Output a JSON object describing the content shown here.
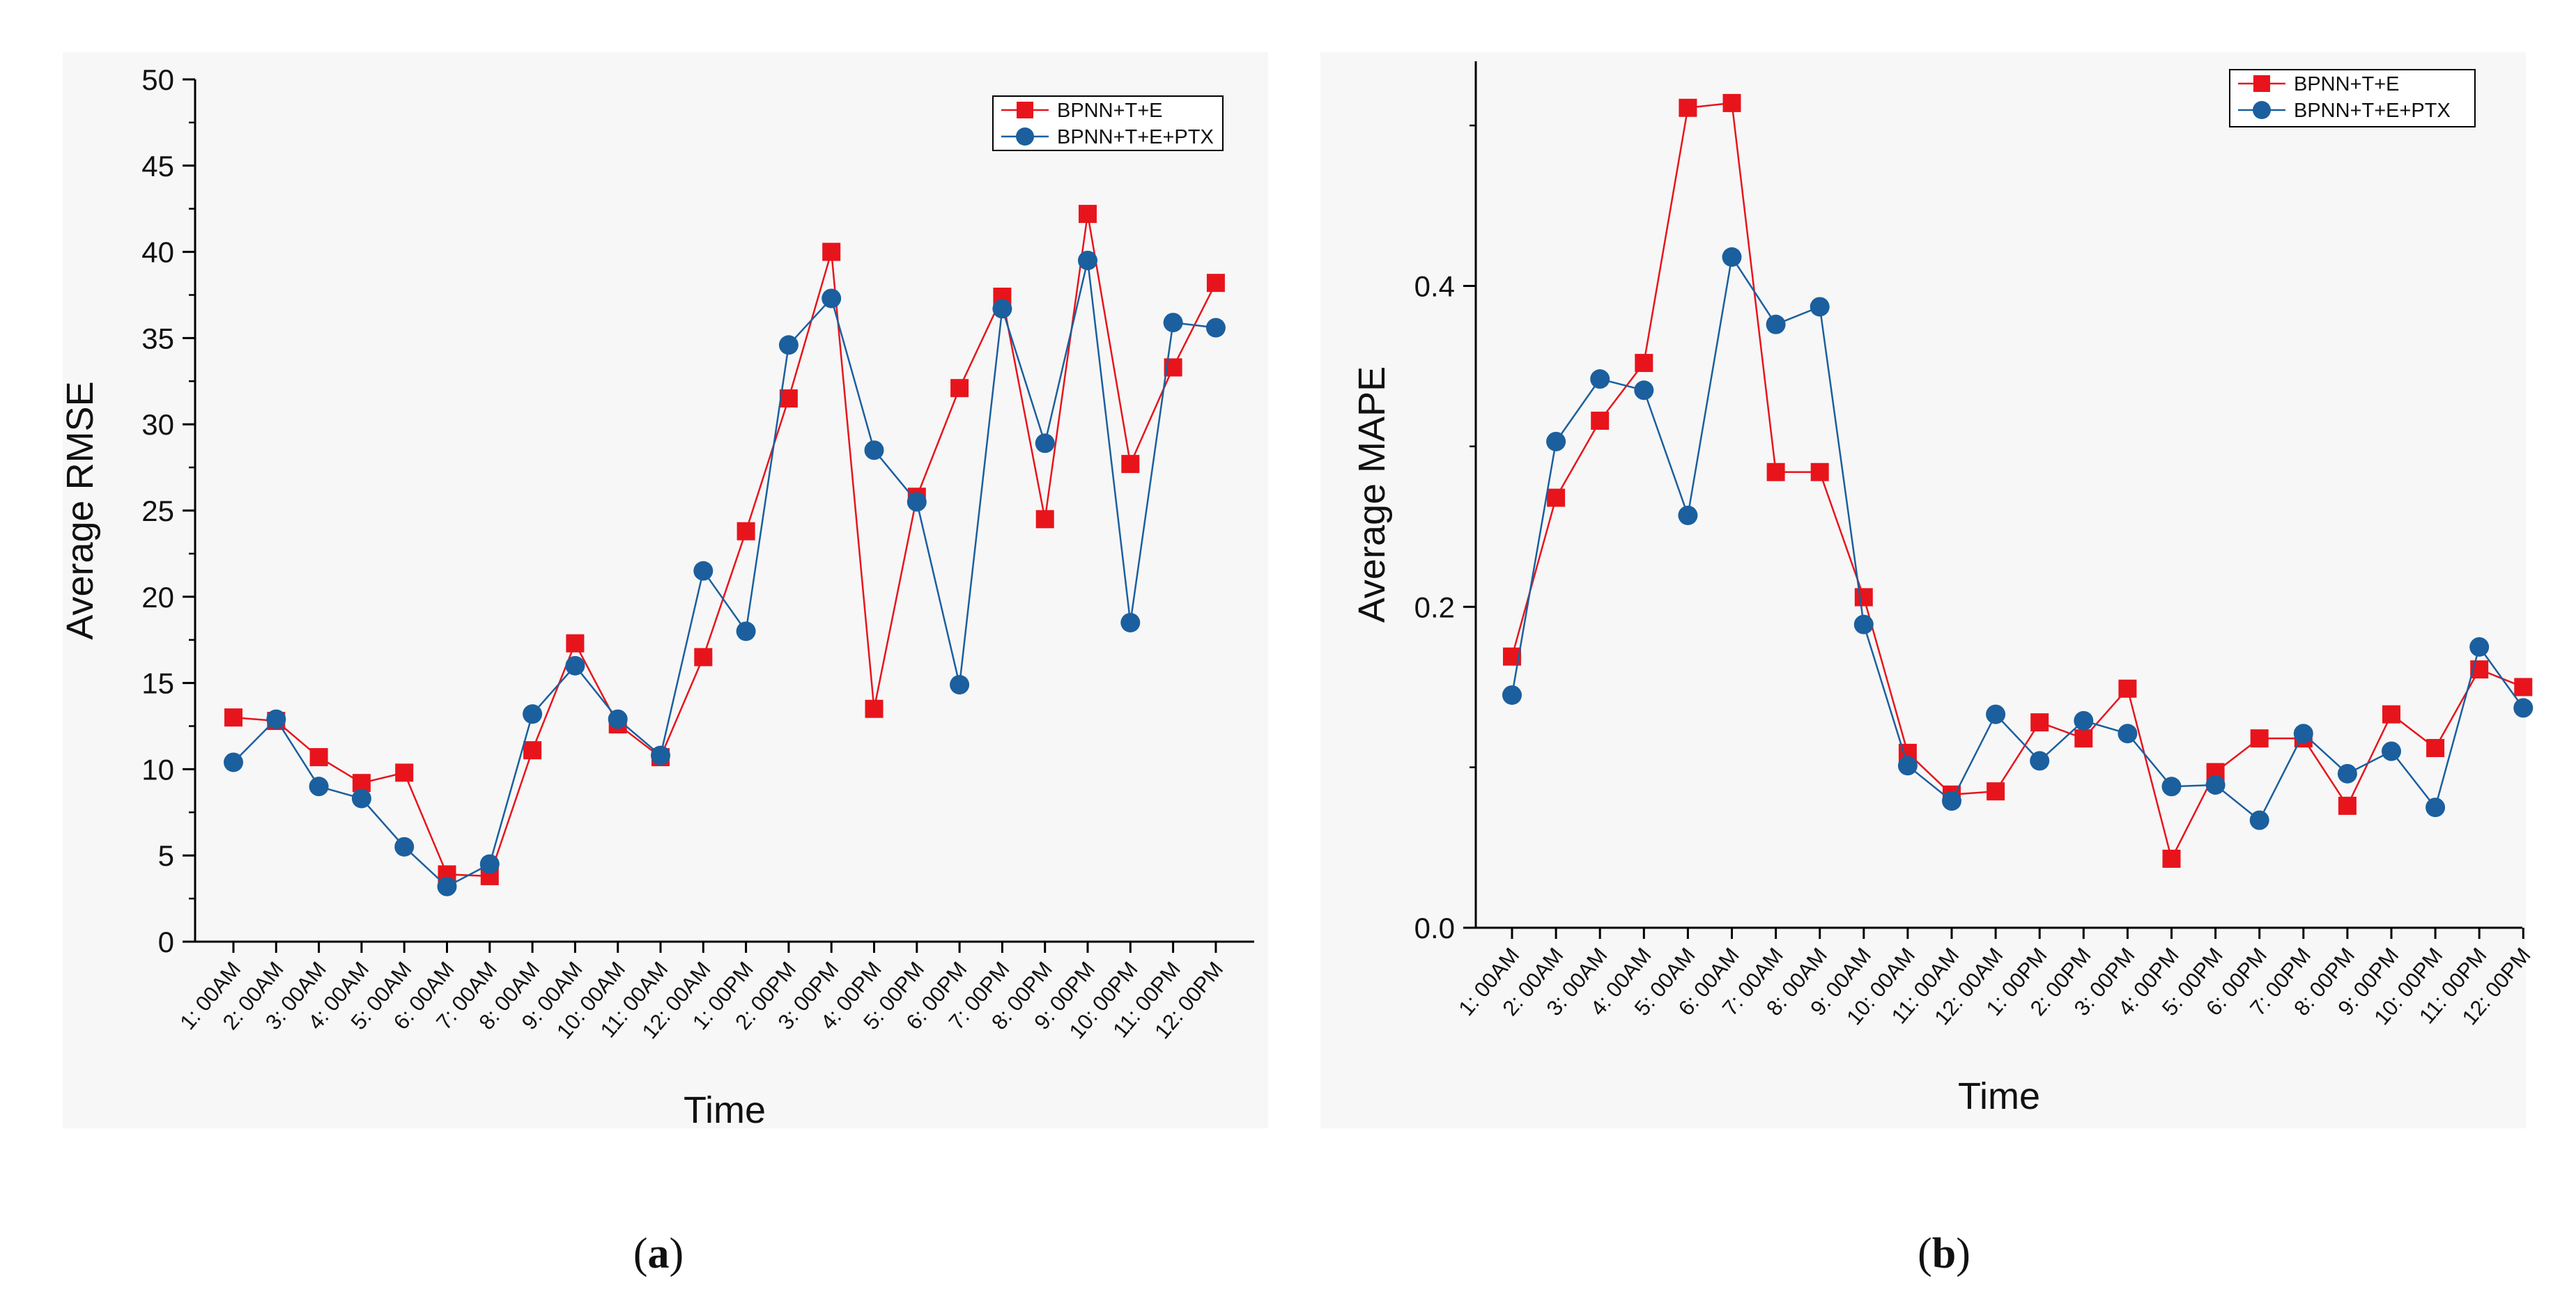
{
  "chart_data": [
    {
      "type": "line",
      "panel": "a",
      "caption": "a",
      "xlabel": "Time",
      "ylabel": "Average RMSE",
      "ylim": [
        0,
        50
      ],
      "yticks": [
        "0",
        "5",
        "10",
        "15",
        "20",
        "25",
        "30",
        "35",
        "40",
        "45",
        "50"
      ],
      "categories": [
        "1: 00AM",
        "2: 00AM",
        "3: 00AM",
        "4: 00AM",
        "5: 00AM",
        "6: 00AM",
        "7: 00AM",
        "8: 00AM",
        "9: 00AM",
        "10: 00AM",
        "11: 00AM",
        "12: 00AM",
        "1: 00PM",
        "2: 00PM",
        "3: 00PM",
        "4: 00PM",
        "5: 00PM",
        "6: 00PM",
        "7: 00PM",
        "8: 00PM",
        "9: 00PM",
        "10: 00PM",
        "11: 00PM",
        "12: 00PM"
      ],
      "legend_position": "top-right",
      "series": [
        {
          "name": "BPNN+T+E",
          "color": "#e8141c",
          "marker": "square",
          "values": [
            13.0,
            12.8,
            10.7,
            9.2,
            9.8,
            3.9,
            3.8,
            11.1,
            17.3,
            12.6,
            10.7,
            16.5,
            23.8,
            31.5,
            40.0,
            13.5,
            25.8,
            32.1,
            37.4,
            24.5,
            42.2,
            27.7,
            33.3,
            38.2
          ]
        },
        {
          "name": "BPNN+T+E+PTX",
          "color": "#1b5f9e",
          "marker": "circle",
          "values": [
            10.4,
            12.9,
            9.0,
            8.3,
            5.5,
            3.2,
            4.5,
            13.2,
            16.0,
            12.9,
            10.8,
            21.5,
            18.0,
            34.6,
            37.3,
            28.5,
            25.5,
            14.9,
            36.7,
            28.9,
            39.5,
            18.5,
            35.9,
            35.6
          ]
        }
      ]
    },
    {
      "type": "line",
      "panel": "b",
      "caption": "b",
      "xlabel": "Time",
      "ylabel": "Average MAPE",
      "ylim": [
        0,
        0.54
      ],
      "yticks": [
        "0.0",
        "0.2",
        "0.4"
      ],
      "categories": [
        "1: 00AM",
        "2: 00AM",
        "3: 00AM",
        "4: 00AM",
        "5: 00AM",
        "6: 00AM",
        "7: 00AM",
        "8: 00AM",
        "9: 00AM",
        "10: 00AM",
        "11: 00AM",
        "12: 00AM",
        "1: 00PM",
        "2: 00PM",
        "3: 00PM",
        "4: 00PM",
        "5: 00PM",
        "6: 00PM",
        "7: 00PM",
        "8: 00PM",
        "9: 00PM",
        "10: 00PM",
        "11: 00PM",
        "12: 00PM"
      ],
      "legend_position": "top-right",
      "series": [
        {
          "name": "BPNN+T+E",
          "color": "#e8141c",
          "marker": "square",
          "values": [
            0.169,
            0.268,
            0.316,
            0.352,
            0.511,
            0.514,
            0.284,
            0.284,
            0.206,
            0.109,
            0.083,
            0.085,
            0.128,
            0.118,
            0.149,
            0.043,
            0.097,
            0.118,
            0.118,
            0.076,
            0.133,
            0.112,
            0.161,
            0.15
          ]
        },
        {
          "name": "BPNN+T+E+PTX",
          "color": "#1b5f9e",
          "marker": "circle",
          "values": [
            0.145,
            0.303,
            0.342,
            0.335,
            0.257,
            0.418,
            0.376,
            0.387,
            0.189,
            0.101,
            0.079,
            0.133,
            0.104,
            0.129,
            0.121,
            0.088,
            0.089,
            0.067,
            0.121,
            0.096,
            0.11,
            0.075,
            0.175,
            0.137
          ]
        }
      ]
    }
  ]
}
